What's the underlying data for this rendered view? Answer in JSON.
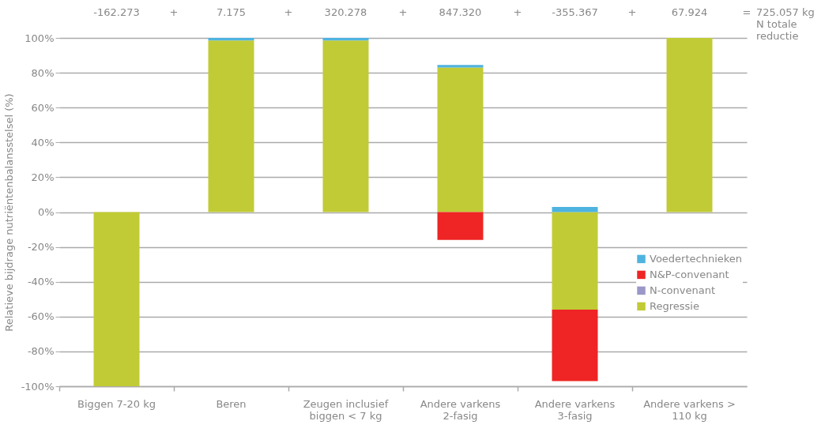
{
  "chart_data": {
    "type": "bar",
    "stacked": true,
    "ylabel": "Relatieve bijdrage nutriëntenbalansstelsel (%)",
    "categories": [
      "Biggen 7-20 kg",
      "Beren",
      "Zeugen inclusief biggen < 7 kg",
      "Andere varkens 2-fasig",
      "Andere varkens 3-fasig",
      "Andere varkens > 110 kg"
    ],
    "series": [
      {
        "name": "Regressie",
        "color": "#c1cb36",
        "values": [
          -100,
          98.5,
          98.5,
          83,
          -56,
          100
        ]
      },
      {
        "name": "N-convenant",
        "color": "#9b97c8",
        "values": [
          null,
          null,
          null,
          null,
          null,
          null
        ]
      },
      {
        "name": "N&P-convenant",
        "color": "#ee2524",
        "values": [
          null,
          null,
          null,
          -16,
          -41,
          null
        ]
      },
      {
        "name": "Voedertechnieken",
        "color": "#4fb3e0",
        "values": [
          null,
          1.5,
          1.5,
          1.5,
          3,
          null
        ]
      }
    ],
    "ylim": [
      -100,
      100
    ],
    "yticks": [
      {
        "value": -100,
        "label": "-100%"
      },
      {
        "value": -80,
        "label": "-80%"
      },
      {
        "value": -60,
        "label": "-60%"
      },
      {
        "value": -40,
        "label": "-40%"
      },
      {
        "value": -20,
        "label": "-20%"
      },
      {
        "value": 0,
        "label": "0%"
      },
      {
        "value": 20,
        "label": "20%"
      },
      {
        "value": 40,
        "label": "40%"
      },
      {
        "value": 60,
        "label": "60%"
      },
      {
        "value": 80,
        "label": "80%"
      },
      {
        "value": 100,
        "label": "100%"
      }
    ],
    "grid": "y",
    "legend": "right",
    "annotations": [
      "-162.273",
      "+",
      "7.175",
      "+",
      "320.278",
      "+",
      "847.320",
      "+",
      "-355.367",
      "+",
      "67.924",
      "=",
      "725.057 kg N totale reductie"
    ]
  }
}
